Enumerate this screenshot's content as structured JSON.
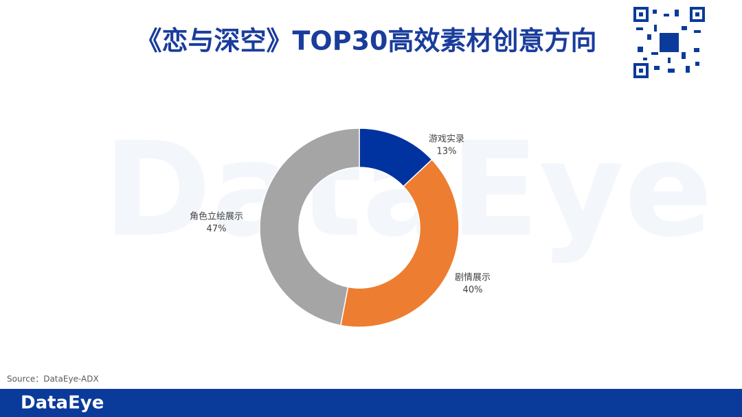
{
  "chart_data": {
    "type": "donut",
    "title": "《恋与深空》TOP30高效素材创意方向",
    "categories": [
      "游戏实录",
      "剧情展示",
      "角色立绘展示"
    ],
    "values": [
      13,
      40,
      47
    ],
    "value_labels": [
      "13%",
      "40%",
      "47%"
    ],
    "colors": [
      "#0033a0",
      "#ed7d31",
      "#a5a5a5"
    ],
    "watermark": "DataEye",
    "source": "Source：DataEye-ADX",
    "logo": "DataEye"
  }
}
